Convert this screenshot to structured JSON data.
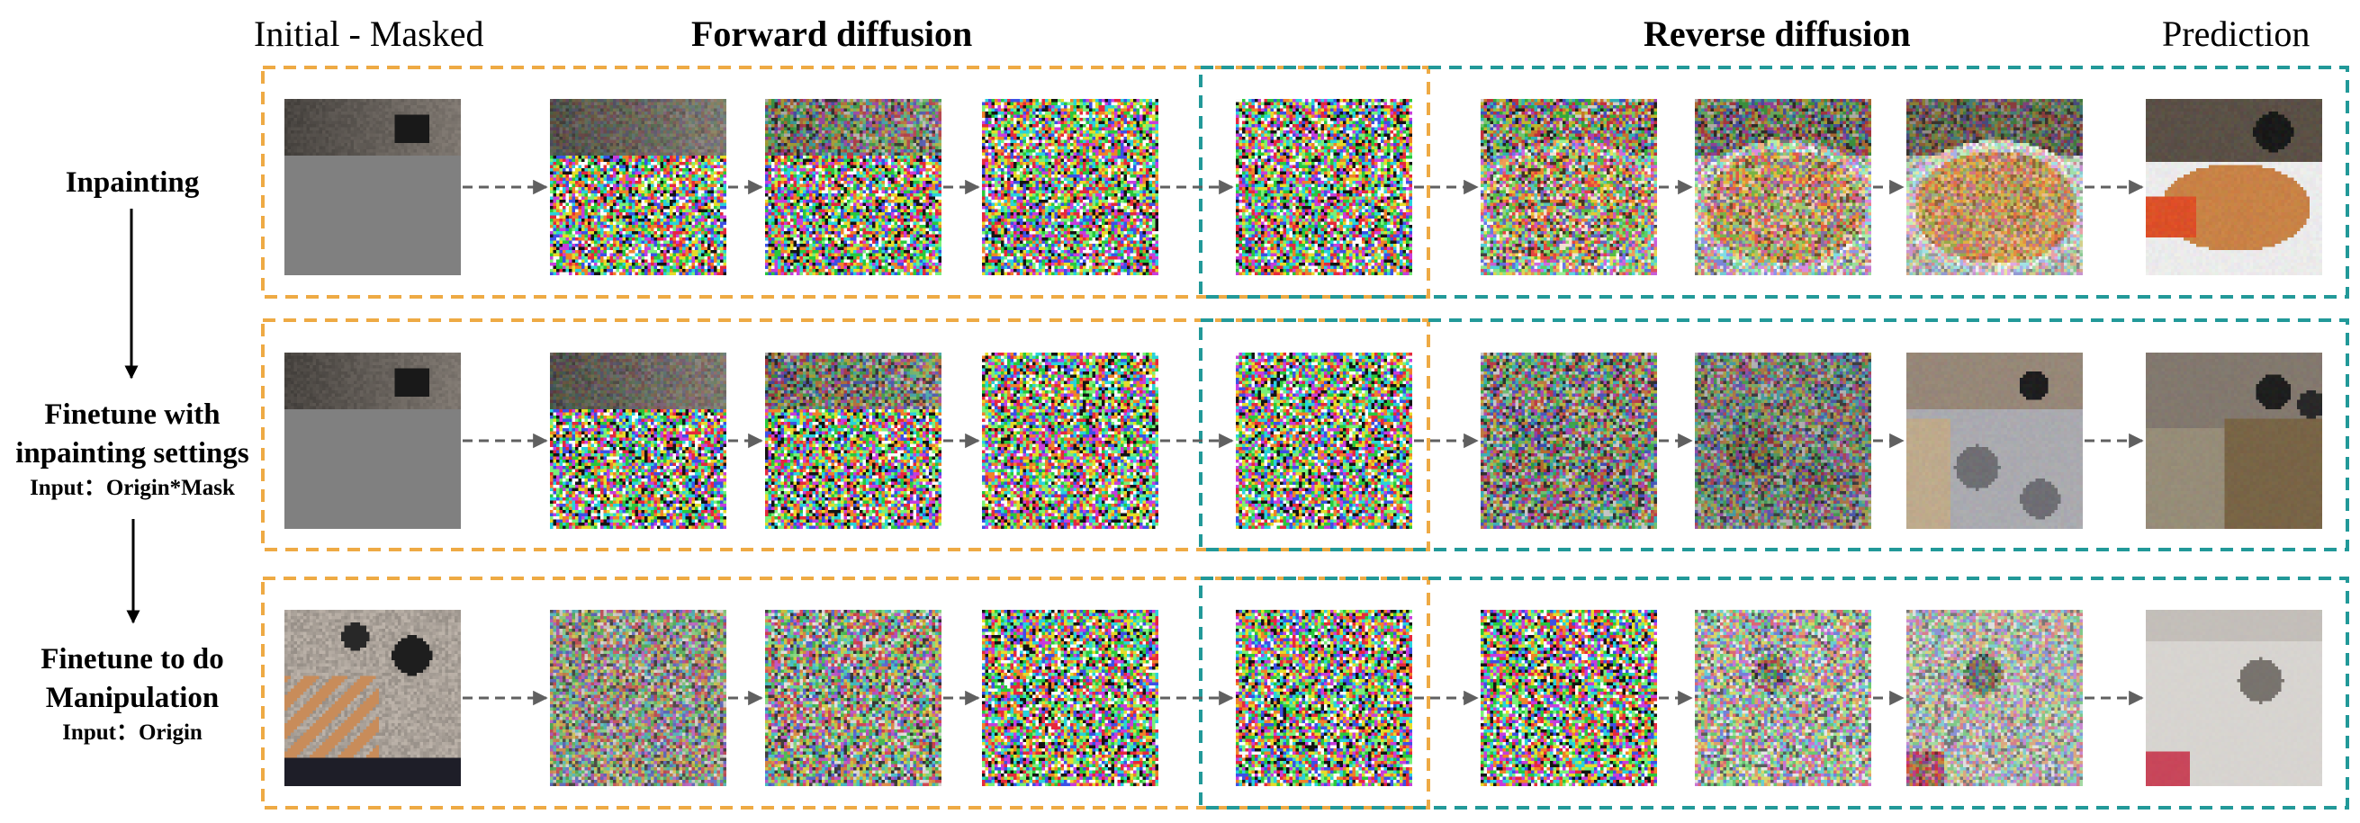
{
  "headers": {
    "initial": "Initial - Masked",
    "forward": "Forward diffusion",
    "reverse": "Reverse diffusion",
    "prediction": "Prediction"
  },
  "rows": [
    {
      "label": "Inpainting",
      "sublabel": ""
    },
    {
      "label": "Finetune with inpainting settings",
      "sublabel": "Input：Origin*Mask"
    },
    {
      "label": "Finetune to do Manipulation",
      "sublabel": "Input：Origin"
    }
  ],
  "colors": {
    "forward_box": "#eeaa44",
    "reverse_box": "#229999",
    "arrow": "#606060",
    "mask_gray": "#808080"
  }
}
